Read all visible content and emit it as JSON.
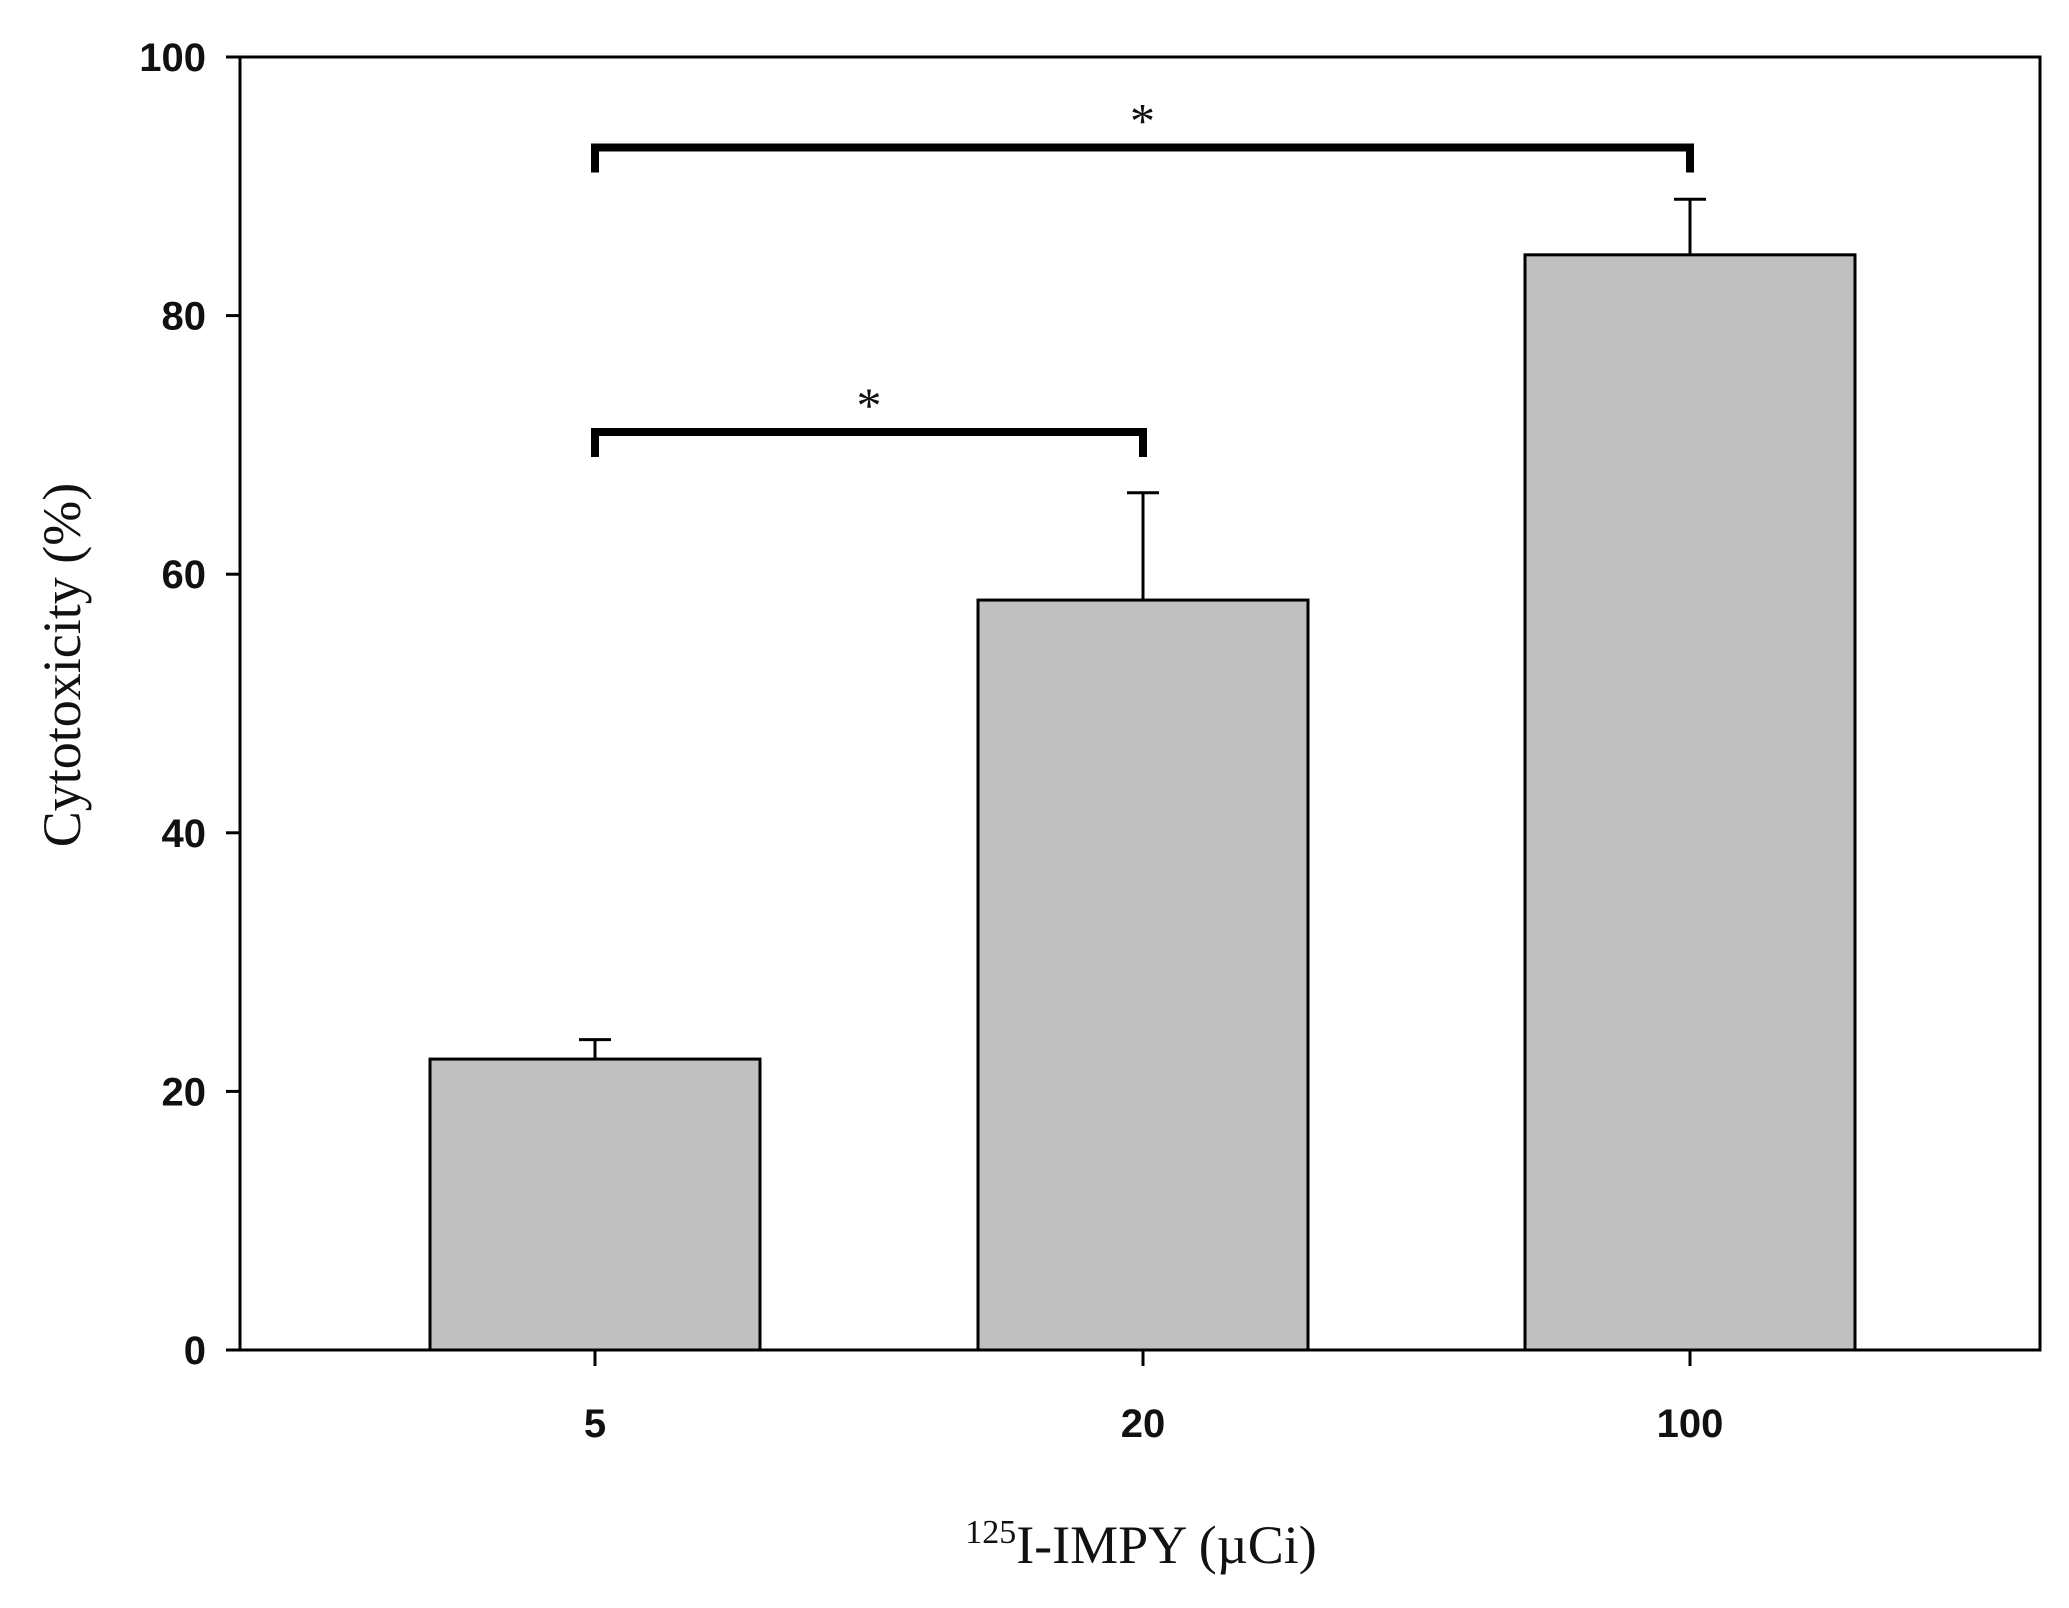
{
  "chart_data": {
    "type": "bar",
    "categories": [
      "5",
      "20",
      "100"
    ],
    "values": [
      22.5,
      58,
      84.7
    ],
    "errors": [
      1.5,
      8.3,
      4.3
    ],
    "ylim": [
      0,
      100
    ],
    "yticks": [
      0,
      20,
      40,
      60,
      80,
      100
    ],
    "ylabel": "Cytotoxicity (%)",
    "xlabel_sup": "125",
    "xlabel": "I-IMPY (µCi)",
    "grid": false,
    "bar_color": "#c0c0c0",
    "significance": [
      {
        "from": "5",
        "to": "20",
        "y": 71,
        "label": "*"
      },
      {
        "from": "5",
        "to": "100",
        "y": 93,
        "label": "*"
      }
    ]
  }
}
